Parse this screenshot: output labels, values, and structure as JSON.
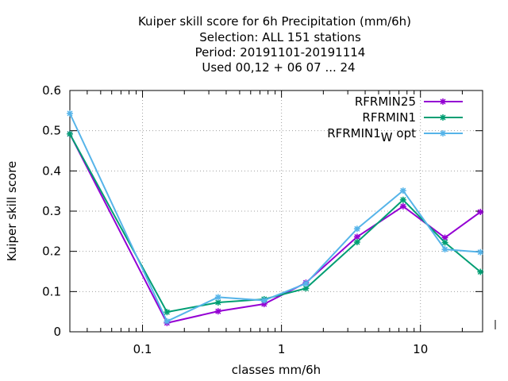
{
  "chart_data": {
    "type": "line",
    "title_lines": [
      "Kuiper skill score  for 6h Precipitation (mm/6h)",
      "Selection: ALL    151 stations",
      "Period: 20191101-20191114",
      "Used  00,12  + 06 07 ... 24"
    ],
    "xlabel": "classes mm/6h",
    "ylabel": "Kuiper skill score",
    "x_scale": "log",
    "xlim": [
      0.03,
      28
    ],
    "ylim": [
      0,
      0.6
    ],
    "x_ticks": [
      {
        "value": 0.1,
        "label": "0.1"
      },
      {
        "value": 1,
        "label": "1"
      },
      {
        "value": 10,
        "label": "10"
      }
    ],
    "y_ticks": [
      {
        "value": 0,
        "label": "0"
      },
      {
        "value": 0.1,
        "label": "0.1"
      },
      {
        "value": 0.2,
        "label": "0.2"
      },
      {
        "value": 0.3,
        "label": "0.3"
      },
      {
        "value": 0.4,
        "label": "0.4"
      },
      {
        "value": 0.5,
        "label": "0.5"
      },
      {
        "value": 0.6,
        "label": "0.6"
      }
    ],
    "grid": true,
    "legend_position": "top-right",
    "x": [
      0.03,
      0.15,
      0.35,
      0.75,
      1.5,
      3.5,
      7.5,
      15,
      27
    ],
    "series": [
      {
        "name": "RFRMIN25",
        "color": "#9400d3",
        "values": [
          0.492,
          0.022,
          0.051,
          0.069,
          0.122,
          0.236,
          0.312,
          0.234,
          0.298
        ]
      },
      {
        "name": "RFRMIN1",
        "color": "#009e73",
        "values": [
          0.492,
          0.049,
          0.073,
          0.081,
          0.108,
          0.223,
          0.328,
          0.222,
          0.149
        ]
      },
      {
        "name": "RFRMIN1",
        "name_subscript": "W",
        "name_suffix": "opt",
        "color": "#56b4e9",
        "values": [
          0.543,
          0.026,
          0.086,
          0.078,
          0.12,
          0.256,
          0.351,
          0.205,
          0.198
        ]
      }
    ]
  }
}
